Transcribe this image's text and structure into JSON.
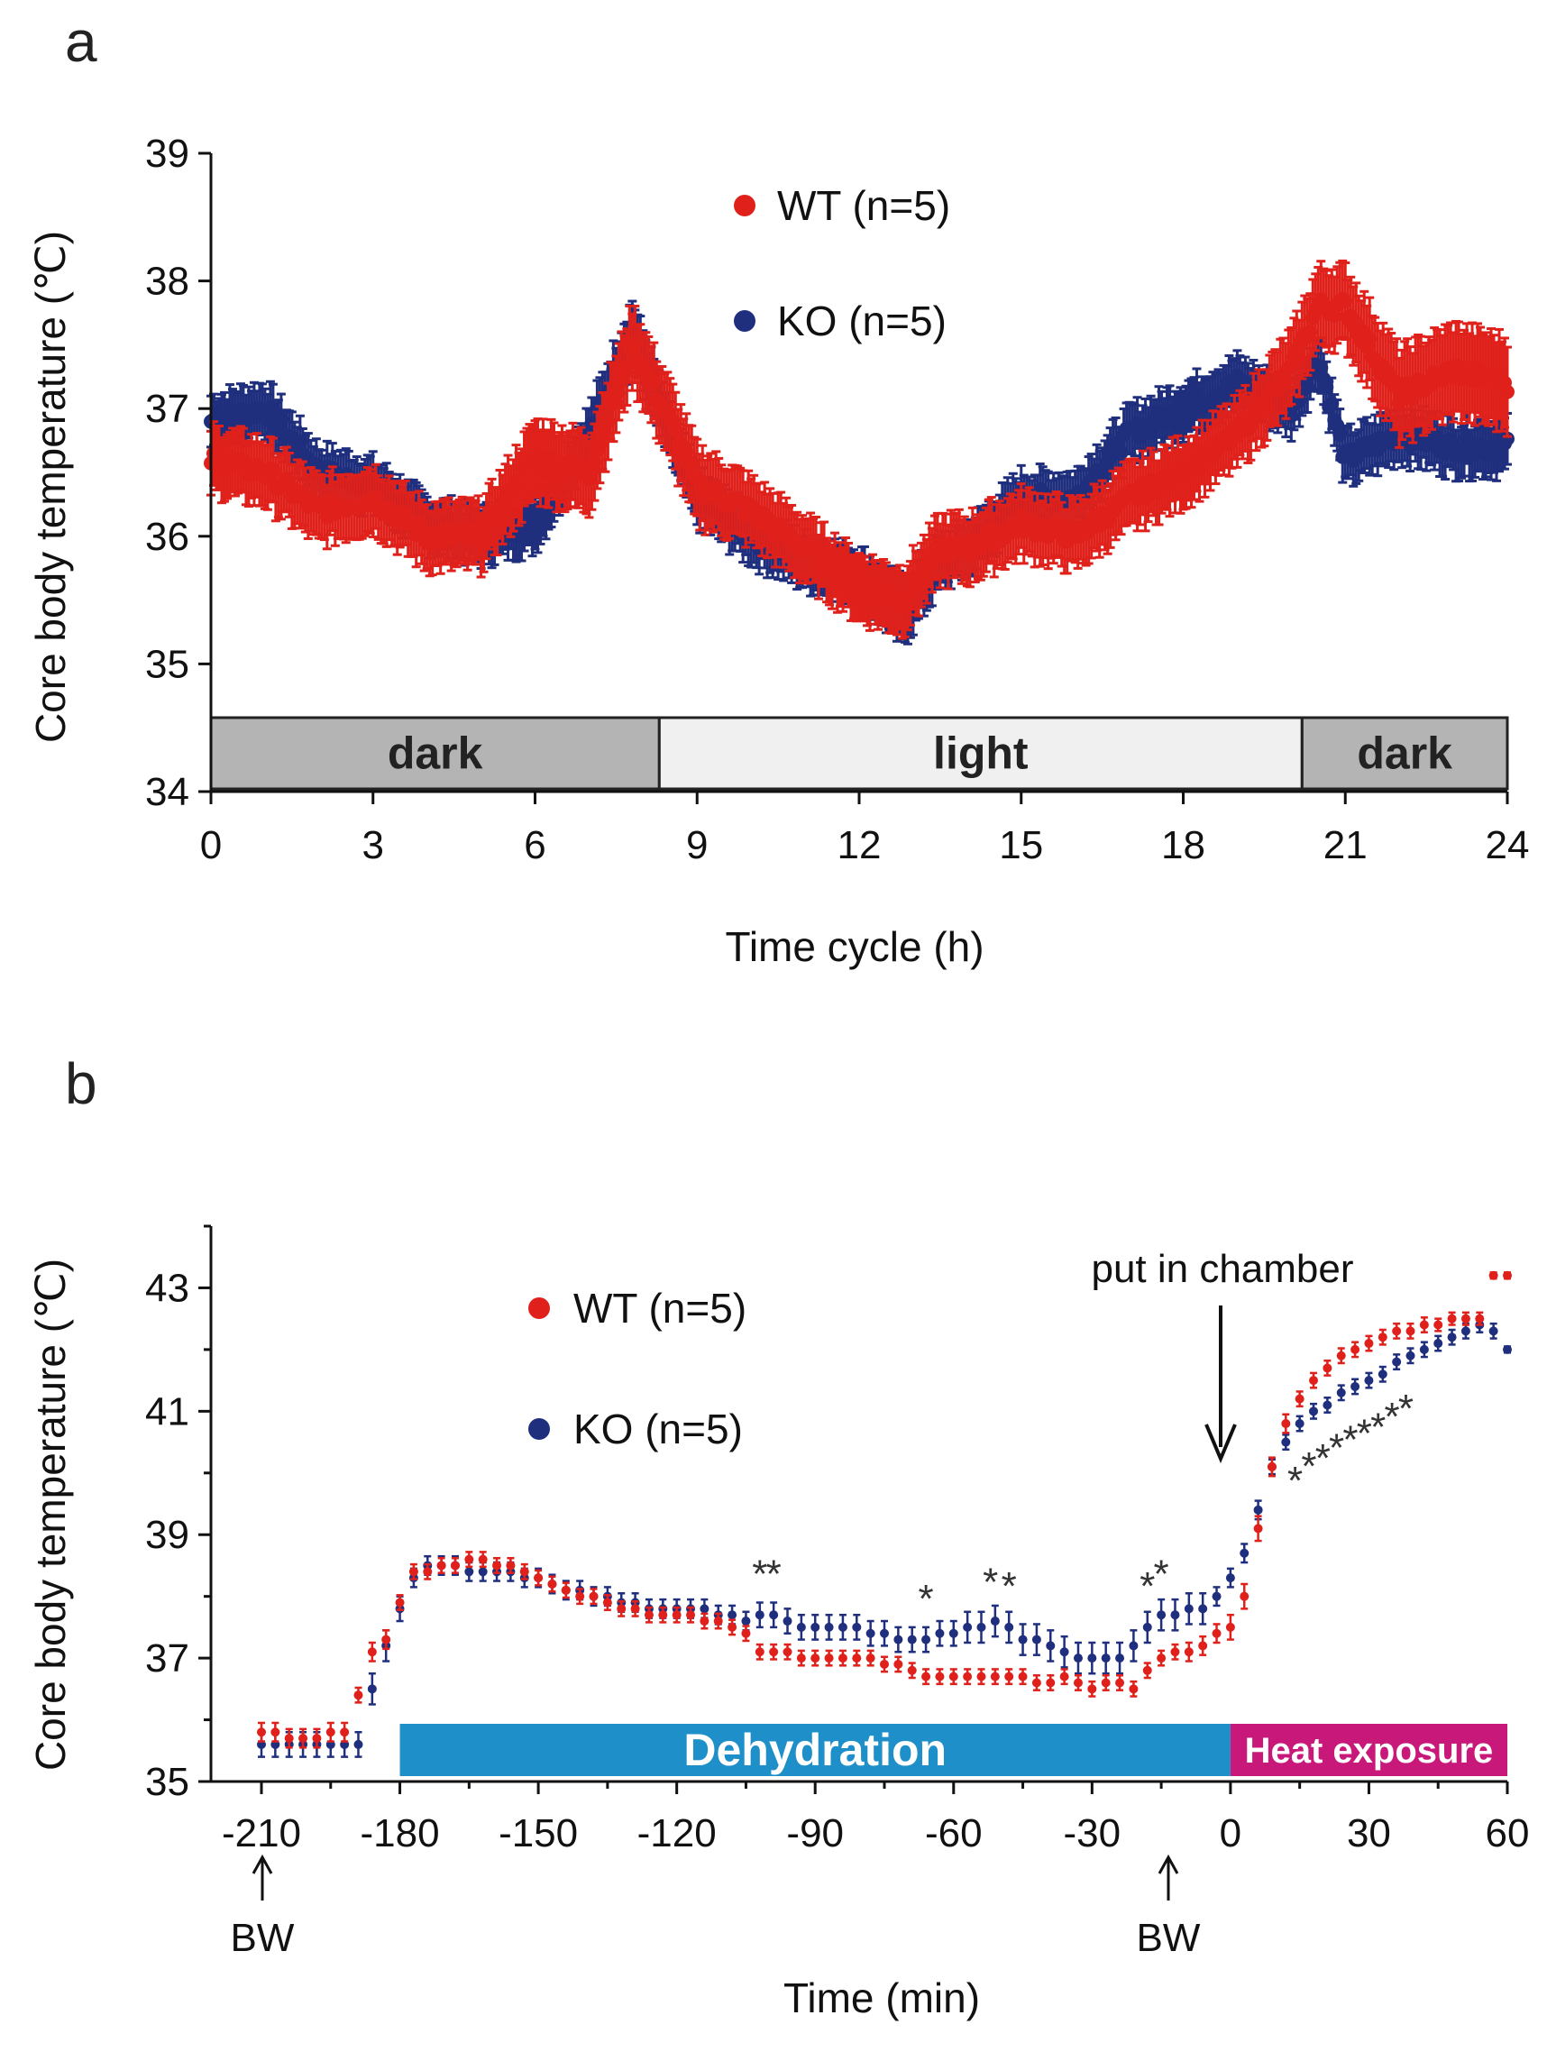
{
  "panels": [
    {
      "letter": "a"
    },
    {
      "letter": "b"
    }
  ],
  "colors": {
    "wt": "#e0211b",
    "ko": "#1f2f7e",
    "dark_bar": "#b4b4b4",
    "light_bar": "#f0f0f0",
    "dehydration": "#1e8fc9",
    "heat": "#c8197a"
  },
  "chart_data": [
    {
      "type": "line",
      "title": "",
      "xlabel": "Time cycle (h)",
      "ylabel": "Core body temperature (℃)",
      "xlim": [
        0,
        24
      ],
      "ylim": [
        34,
        39
      ],
      "xticks": [
        "0",
        "3",
        "6",
        "9",
        "12",
        "15",
        "18",
        "21",
        "24"
      ],
      "yticks": [
        "34",
        "35",
        "36",
        "37",
        "38",
        "39"
      ],
      "legend": [
        {
          "name": "WT (n=5)",
          "color": "#e0211b"
        },
        {
          "name": "KO (n=5)",
          "color": "#1f2f7e"
        }
      ],
      "phases": [
        {
          "label": "dark",
          "from": 0,
          "to": 8.3
        },
        {
          "label": "light",
          "from": 8.3,
          "to": 20.2
        },
        {
          "label": "dark",
          "from": 20.2,
          "to": 24
        }
      ],
      "series": [
        {
          "name": "WT (n=5)",
          "x": [
            0,
            1,
            2,
            3,
            4,
            5,
            6,
            7,
            7.8,
            8.5,
            9,
            10,
            11,
            12,
            12.8,
            13.5,
            14,
            15,
            16,
            17,
            18,
            19,
            20,
            20.5,
            21,
            22,
            23,
            24
          ],
          "y": [
            36.6,
            36.5,
            36.2,
            36.3,
            36.0,
            36.0,
            36.6,
            36.5,
            37.5,
            36.9,
            36.4,
            36.2,
            35.9,
            35.6,
            35.5,
            35.9,
            35.9,
            36.1,
            36.0,
            36.3,
            36.5,
            36.8,
            37.3,
            37.8,
            37.8,
            37.1,
            37.3,
            37.2
          ],
          "err": [
            0.25,
            0.25,
            0.25,
            0.25,
            0.25,
            0.25,
            0.3,
            0.3,
            0.3,
            0.3,
            0.3,
            0.25,
            0.25,
            0.25,
            0.25,
            0.25,
            0.25,
            0.25,
            0.25,
            0.25,
            0.25,
            0.25,
            0.3,
            0.3,
            0.3,
            0.35,
            0.35,
            0.35
          ]
        },
        {
          "name": "KO (n=5)",
          "x": [
            0,
            1,
            2,
            3,
            4,
            5,
            6,
            7,
            7.8,
            8.5,
            9,
            10,
            11,
            12,
            12.8,
            13.5,
            14,
            15,
            16,
            17,
            18,
            19,
            20,
            20.5,
            21,
            22,
            23,
            24
          ],
          "y": [
            36.9,
            37.0,
            36.5,
            36.4,
            36.1,
            36.0,
            36.1,
            36.8,
            37.6,
            36.8,
            36.3,
            36.0,
            35.8,
            35.7,
            35.4,
            35.8,
            35.9,
            36.3,
            36.3,
            36.8,
            37.0,
            37.2,
            37.0,
            37.4,
            36.6,
            36.8,
            36.7,
            36.7
          ],
          "err": [
            0.2,
            0.2,
            0.2,
            0.2,
            0.2,
            0.2,
            0.2,
            0.2,
            0.25,
            0.2,
            0.2,
            0.2,
            0.2,
            0.2,
            0.25,
            0.2,
            0.2,
            0.2,
            0.2,
            0.2,
            0.2,
            0.2,
            0.2,
            0.2,
            0.2,
            0.2,
            0.2,
            0.2
          ]
        }
      ]
    },
    {
      "type": "scatter",
      "title": "",
      "xlabel": "Time (min)",
      "ylabel": "Core body temperature (℃)",
      "xlim": [
        -210,
        60
      ],
      "ylim": [
        35,
        44
      ],
      "xticks": [
        "-210",
        "-180",
        "-150",
        "-120",
        "-90",
        "-60",
        "-30",
        "0",
        "30",
        "60"
      ],
      "yticks": [
        "35",
        "37",
        "39",
        "41",
        "43"
      ],
      "legend": [
        {
          "name": "WT (n=5)",
          "color": "#e0211b"
        },
        {
          "name": "KO (n=5)",
          "color": "#1f2f7e"
        }
      ],
      "phases": [
        {
          "label": "Dehydration",
          "from": -180,
          "to": 0
        },
        {
          "label": "Heat exposure",
          "from": 0,
          "to": 60
        }
      ],
      "annotations": [
        {
          "text": "put in chamber",
          "x": 0
        },
        {
          "text": "BW",
          "x": -210
        },
        {
          "text": "BW",
          "x": -12
        }
      ],
      "significance": {
        "symbol": "*",
        "x": [
          -102,
          -99,
          -66,
          -52,
          -48,
          -18,
          -15,
          14,
          17,
          20,
          23,
          26,
          29,
          32,
          35,
          38
        ]
      },
      "series": [
        {
          "name": "WT (n=5)",
          "x": [
            -210,
            -207,
            -204,
            -201,
            -198,
            -195,
            -192,
            -189,
            -186,
            -183,
            -180,
            -177,
            -174,
            -171,
            -168,
            -165,
            -162,
            -159,
            -156,
            -153,
            -150,
            -147,
            -144,
            -141,
            -138,
            -135,
            -132,
            -129,
            -126,
            -123,
            -120,
            -117,
            -114,
            -111,
            -108,
            -105,
            -102,
            -99,
            -96,
            -93,
            -90,
            -87,
            -84,
            -81,
            -78,
            -75,
            -72,
            -69,
            -66,
            -63,
            -60,
            -57,
            -54,
            -51,
            -48,
            -45,
            -42,
            -39,
            -36,
            -33,
            -30,
            -27,
            -24,
            -21,
            -18,
            -15,
            -12,
            -9,
            -6,
            -3,
            0,
            3,
            6,
            9,
            12,
            15,
            18,
            21,
            24,
            27,
            30,
            33,
            36,
            39,
            42,
            45,
            48,
            51,
            54,
            57,
            60
          ],
          "y": [
            35.8,
            35.8,
            35.7,
            35.7,
            35.7,
            35.8,
            35.8,
            36.4,
            37.1,
            37.3,
            37.9,
            38.4,
            38.4,
            38.5,
            38.5,
            38.6,
            38.6,
            38.5,
            38.5,
            38.4,
            38.3,
            38.2,
            38.1,
            38.0,
            38.0,
            37.9,
            37.8,
            37.8,
            37.7,
            37.7,
            37.7,
            37.7,
            37.6,
            37.6,
            37.5,
            37.4,
            37.1,
            37.1,
            37.1,
            37.0,
            37.0,
            37.0,
            37.0,
            37.0,
            37.0,
            36.9,
            36.9,
            36.8,
            36.7,
            36.7,
            36.7,
            36.7,
            36.7,
            36.7,
            36.7,
            36.7,
            36.6,
            36.6,
            36.7,
            36.6,
            36.5,
            36.6,
            36.6,
            36.5,
            36.8,
            37.0,
            37.1,
            37.1,
            37.2,
            37.4,
            37.5,
            38.0,
            39.1,
            40.1,
            40.8,
            41.2,
            41.5,
            41.7,
            41.9,
            42.0,
            42.1,
            42.2,
            42.3,
            42.3,
            42.4,
            42.4,
            42.5,
            42.5,
            42.5,
            43.2,
            43.2
          ],
          "err": [
            0.15,
            0.15,
            0.15,
            0.15,
            0.15,
            0.15,
            0.15,
            0.12,
            0.15,
            0.15,
            0.12,
            0.12,
            0.12,
            0.12,
            0.12,
            0.12,
            0.12,
            0.12,
            0.12,
            0.12,
            0.12,
            0.12,
            0.12,
            0.12,
            0.12,
            0.12,
            0.12,
            0.12,
            0.12,
            0.12,
            0.12,
            0.12,
            0.12,
            0.12,
            0.12,
            0.12,
            0.12,
            0.12,
            0.12,
            0.12,
            0.12,
            0.12,
            0.12,
            0.12,
            0.12,
            0.12,
            0.12,
            0.12,
            0.12,
            0.12,
            0.12,
            0.12,
            0.12,
            0.12,
            0.12,
            0.12,
            0.12,
            0.12,
            0.12,
            0.12,
            0.12,
            0.12,
            0.12,
            0.12,
            0.12,
            0.12,
            0.12,
            0.15,
            0.15,
            0.15,
            0.2,
            0.2,
            0.2,
            0.15,
            0.15,
            0.12,
            0.12,
            0.12,
            0.12,
            0.12,
            0.12,
            0.12,
            0.12,
            0.12,
            0.12,
            0.1,
            0.1,
            0.1,
            0.1,
            0.05,
            0.05
          ]
        },
        {
          "name": "KO (n=5)",
          "x": [
            -210,
            -207,
            -204,
            -201,
            -198,
            -195,
            -192,
            -189,
            -186,
            -183,
            -180,
            -177,
            -174,
            -171,
            -168,
            -165,
            -162,
            -159,
            -156,
            -153,
            -150,
            -147,
            -144,
            -141,
            -138,
            -135,
            -132,
            -129,
            -126,
            -123,
            -120,
            -117,
            -114,
            -111,
            -108,
            -105,
            -102,
            -99,
            -96,
            -93,
            -90,
            -87,
            -84,
            -81,
            -78,
            -75,
            -72,
            -69,
            -66,
            -63,
            -60,
            -57,
            -54,
            -51,
            -48,
            -45,
            -42,
            -39,
            -36,
            -33,
            -30,
            -27,
            -24,
            -21,
            -18,
            -15,
            -12,
            -9,
            -6,
            -3,
            0,
            3,
            6,
            9,
            12,
            15,
            18,
            21,
            24,
            27,
            30,
            33,
            36,
            39,
            42,
            45,
            48,
            51,
            54,
            57,
            60
          ],
          "y": [
            35.6,
            35.6,
            35.6,
            35.6,
            35.6,
            35.6,
            35.6,
            35.6,
            36.5,
            37.2,
            37.8,
            38.3,
            38.5,
            38.5,
            38.5,
            38.4,
            38.4,
            38.4,
            38.4,
            38.3,
            38.3,
            38.2,
            38.1,
            38.1,
            38.0,
            38.0,
            37.9,
            37.9,
            37.8,
            37.8,
            37.8,
            37.8,
            37.8,
            37.7,
            37.7,
            37.6,
            37.7,
            37.7,
            37.6,
            37.5,
            37.5,
            37.5,
            37.5,
            37.5,
            37.4,
            37.4,
            37.3,
            37.3,
            37.3,
            37.4,
            37.4,
            37.5,
            37.5,
            37.6,
            37.5,
            37.3,
            37.3,
            37.2,
            37.1,
            37.0,
            37.0,
            37.0,
            37.0,
            37.2,
            37.5,
            37.7,
            37.7,
            37.8,
            37.8,
            38.0,
            38.3,
            38.7,
            39.4,
            40.1,
            40.5,
            40.8,
            41.0,
            41.1,
            41.3,
            41.4,
            41.5,
            41.6,
            41.8,
            41.9,
            42.0,
            42.1,
            42.2,
            42.3,
            42.4,
            42.3,
            42.0
          ],
          "err": [
            0.2,
            0.2,
            0.2,
            0.2,
            0.2,
            0.2,
            0.2,
            0.2,
            0.25,
            0.25,
            0.2,
            0.15,
            0.15,
            0.15,
            0.15,
            0.15,
            0.15,
            0.15,
            0.15,
            0.15,
            0.15,
            0.15,
            0.15,
            0.15,
            0.15,
            0.15,
            0.15,
            0.15,
            0.15,
            0.15,
            0.15,
            0.15,
            0.15,
            0.15,
            0.15,
            0.15,
            0.2,
            0.2,
            0.2,
            0.2,
            0.2,
            0.2,
            0.2,
            0.2,
            0.2,
            0.2,
            0.2,
            0.2,
            0.2,
            0.2,
            0.2,
            0.25,
            0.25,
            0.25,
            0.25,
            0.25,
            0.25,
            0.25,
            0.25,
            0.25,
            0.25,
            0.25,
            0.25,
            0.25,
            0.25,
            0.25,
            0.25,
            0.25,
            0.25,
            0.15,
            0.15,
            0.15,
            0.15,
            0.12,
            0.12,
            0.12,
            0.12,
            0.12,
            0.12,
            0.12,
            0.12,
            0.12,
            0.12,
            0.12,
            0.12,
            0.12,
            0.12,
            0.12,
            0.12,
            0.12,
            0.05
          ]
        }
      ]
    }
  ]
}
